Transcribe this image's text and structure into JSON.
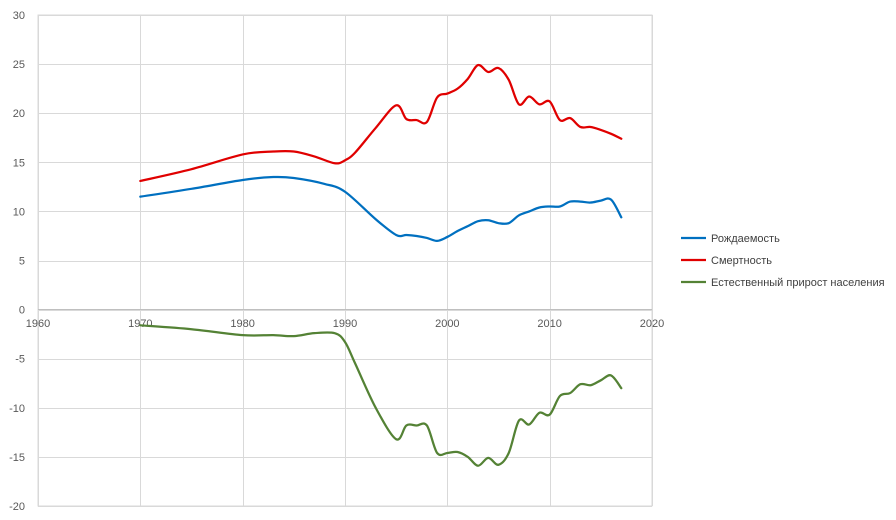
{
  "chart_data": {
    "type": "line",
    "title": "",
    "xlabel": "",
    "ylabel": "",
    "xlim": [
      1960,
      2020
    ],
    "ylim": [
      -20,
      30
    ],
    "x_ticks": [
      1960,
      1970,
      1980,
      1990,
      2000,
      2010,
      2020
    ],
    "y_ticks": [
      -20,
      -15,
      -10,
      -5,
      0,
      5,
      10,
      15,
      20,
      25,
      30
    ],
    "grid": true,
    "legend_position": "right",
    "series": [
      {
        "name": "Рождаемость",
        "color": "#0070c0",
        "x": [
          1970,
          1975,
          1980,
          1983,
          1985,
          1988,
          1990,
          1993,
          1995,
          1996,
          1997,
          1998,
          1999,
          2000,
          2001,
          2002,
          2003,
          2004,
          2005,
          2006,
          2007,
          2008,
          2009,
          2010,
          2011,
          2012,
          2013,
          2014,
          2015,
          2016,
          2017
        ],
        "y": [
          11.5,
          12.3,
          13.2,
          13.5,
          13.4,
          12.8,
          12.0,
          9.2,
          7.6,
          7.6,
          7.5,
          7.3,
          7.0,
          7.4,
          8.0,
          8.5,
          9.0,
          9.1,
          8.8,
          8.8,
          9.6,
          10.0,
          10.4,
          10.5,
          10.5,
          11.0,
          11.0,
          10.9,
          11.1,
          11.2,
          9.4
        ]
      },
      {
        "name": "Смертность",
        "color": "#e00000",
        "x": [
          1970,
          1975,
          1980,
          1983,
          1985,
          1987,
          1989,
          1990,
          1991,
          1993,
          1995,
          1996,
          1997,
          1998,
          1999,
          2000,
          2001,
          2002,
          2003,
          2004,
          2005,
          2006,
          2007,
          2008,
          2009,
          2010,
          2011,
          2012,
          2013,
          2014,
          2015,
          2016,
          2017
        ],
        "y": [
          13.1,
          14.3,
          15.8,
          16.1,
          16.1,
          15.6,
          14.9,
          15.2,
          16.0,
          18.5,
          20.8,
          19.4,
          19.3,
          19.1,
          21.6,
          22.0,
          22.5,
          23.5,
          24.9,
          24.2,
          24.6,
          23.4,
          20.9,
          21.7,
          20.9,
          21.2,
          19.3,
          19.5,
          18.6,
          18.6,
          18.3,
          17.9,
          17.4
        ]
      },
      {
        "name": "Естественный прирост населения",
        "color": "#548235",
        "x": [
          1970,
          1975,
          1980,
          1983,
          1985,
          1987,
          1989,
          1990,
          1991,
          1993,
          1995,
          1996,
          1997,
          1998,
          1999,
          2000,
          2001,
          2002,
          2003,
          2004,
          2005,
          2006,
          2007,
          2008,
          2009,
          2010,
          2011,
          2012,
          2013,
          2014,
          2015,
          2016,
          2017
        ],
        "y": [
          -1.6,
          -2.0,
          -2.6,
          -2.6,
          -2.7,
          -2.4,
          -2.4,
          -3.3,
          -5.5,
          -10.0,
          -13.2,
          -11.8,
          -11.8,
          -11.8,
          -14.6,
          -14.6,
          -14.5,
          -15.0,
          -15.9,
          -15.1,
          -15.8,
          -14.6,
          -11.3,
          -11.7,
          -10.5,
          -10.7,
          -8.8,
          -8.5,
          -7.6,
          -7.7,
          -7.2,
          -6.7,
          -8.0
        ]
      }
    ]
  }
}
